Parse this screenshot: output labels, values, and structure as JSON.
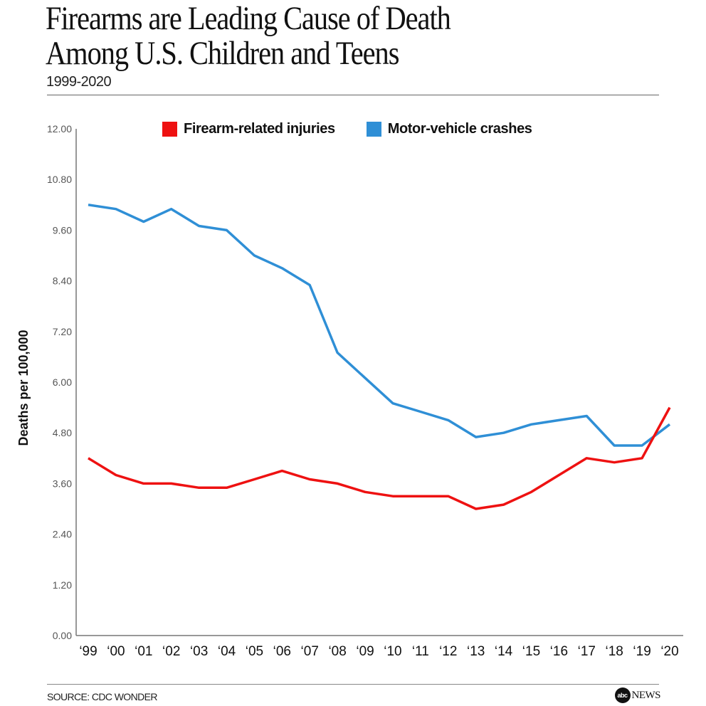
{
  "header": {
    "title_line1": "Firearms are Leading Cause of Death",
    "title_line2": "Among U.S. Children and Teens",
    "subtitle": "1999-2020"
  },
  "footer": {
    "source": "SOURCE: CDC WONDER",
    "logo_mark": "abc",
    "logo_text": "NEWS"
  },
  "colors": {
    "firearm": "#ee1111",
    "motor": "#2f8fd6",
    "axis": "#777777"
  },
  "chart_data": {
    "type": "line",
    "title": "Firearms are Leading Cause of Death Among U.S. Children and Teens",
    "subtitle": "1999-2020",
    "xlabel": "",
    "ylabel": "Deaths per 100,000",
    "ylim": [
      0,
      12
    ],
    "yticks": [
      "0.00",
      "1.20",
      "2.40",
      "3.60",
      "4.80",
      "6.00",
      "7.20",
      "8.40",
      "9.60",
      "10.80",
      "12.00"
    ],
    "x": [
      "‘99",
      "‘00",
      "‘01",
      "‘02",
      "‘03",
      "‘04",
      "‘05",
      "‘06",
      "‘07",
      "‘08",
      "‘09",
      "‘10",
      "‘11",
      "‘12",
      "‘13",
      "‘14",
      "‘15",
      "‘16",
      "‘17",
      "‘18",
      "‘19",
      "‘20"
    ],
    "grid": false,
    "legend_position": "top-center",
    "series": [
      {
        "name": "Firearm-related injuries",
        "color": "#ee1111",
        "values": [
          4.2,
          3.8,
          3.6,
          3.6,
          3.5,
          3.5,
          3.7,
          3.9,
          3.7,
          3.6,
          3.4,
          3.3,
          3.3,
          3.3,
          3.0,
          3.1,
          3.4,
          3.8,
          4.2,
          4.1,
          4.2,
          5.4
        ]
      },
      {
        "name": "Motor-vehicle crashes",
        "color": "#2f8fd6",
        "values": [
          10.2,
          10.1,
          9.8,
          10.1,
          9.7,
          9.6,
          9.0,
          8.7,
          8.3,
          6.7,
          6.1,
          5.5,
          5.3,
          5.1,
          4.7,
          4.8,
          5.0,
          5.1,
          5.2,
          4.5,
          4.5,
          5.0
        ]
      }
    ]
  }
}
